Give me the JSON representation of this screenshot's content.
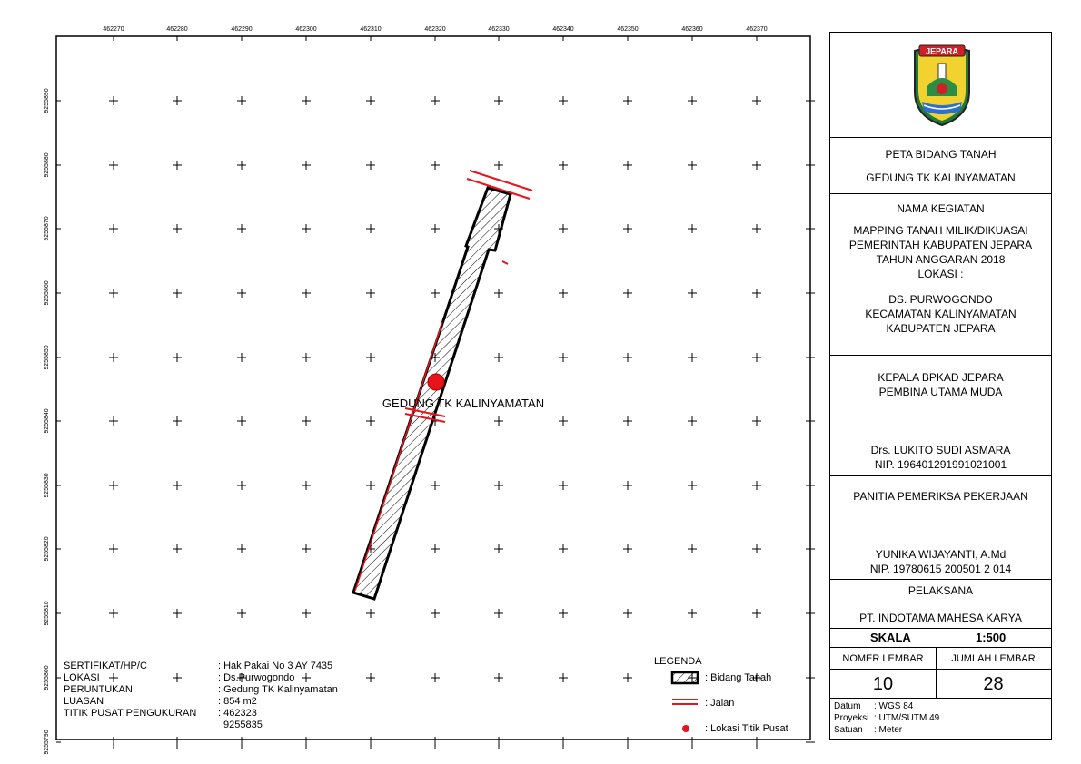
{
  "map": {
    "x_tick_labels": [
      "462270",
      "462280",
      "462290",
      "462300",
      "462310",
      "462320",
      "462330",
      "462340",
      "462350",
      "462360",
      "462370"
    ],
    "y_tick_labels": [
      "9255890",
      "9255880",
      "9255870",
      "9255860",
      "9255850",
      "9255840",
      "9255830",
      "9255820",
      "9255810",
      "9255800",
      "9255790"
    ],
    "feature_label": "GEDUNG TK KALINYAMATAN",
    "colors": {
      "road": "#e8141c",
      "point": "#e8141c",
      "parcel_outline": "#000000"
    }
  },
  "info": {
    "rows": [
      {
        "label": "SERTIFIKAT/HP/C",
        "value": ": Hak Pakai No 3 AY 7435"
      },
      {
        "label": "LOKASI",
        "value": ": Ds.Purwogondo"
      },
      {
        "label": "PERUNTUKAN",
        "value": ": Gedung TK Kalinyamatan"
      },
      {
        "label": "LUASAN",
        "value": ": 854 m2"
      },
      {
        "label": "TITIK PUSAT PENGUKURAN",
        "value": ": 462323"
      },
      {
        "label": "",
        "value": "9255835"
      }
    ]
  },
  "legend": {
    "title": "LEGENDA",
    "items": [
      {
        "icon": "hatched-box-icon",
        "label": ": Bidang Tanah"
      },
      {
        "icon": "red-double-line-icon",
        "label": ": Jalan"
      },
      {
        "icon": "red-dot-icon",
        "label": ": Lokasi Titik Pusat"
      }
    ]
  },
  "panel": {
    "logo_text": "JEPARA",
    "title_line1": "PETA BIDANG TANAH",
    "title_line2": "GEDUNG TK KALINYAMATAN",
    "activity_header": "NAMA KEGIATAN",
    "activity_lines": [
      "MAPPING TANAH MILIK/DIKUASAI",
      "PEMERINTAH KABUPATEN JEPARA",
      "TAHUN ANGGARAN 2018"
    ],
    "location_header": "LOKASI :",
    "location_lines": [
      "DS. PURWOGONDO",
      "KECAMATAN KALINYAMATAN",
      "KABUPATEN JEPARA"
    ],
    "head_title1": "KEPALA BPKAD JEPARA",
    "head_title2": "PEMBINA UTAMA MUDA",
    "head_name": "Drs. LUKITO SUDI ASMARA",
    "head_nip": "NIP. 196401291991021001",
    "committee_title": "PANITIA PEMERIKSA PEKERJAAN",
    "committee_name": "YUNIKA WIJAYANTI, A.Md",
    "committee_nip": "NIP. 19780615 200501 2 014",
    "executor_title": "PELAKSANA",
    "executor_name": "PT. INDOTAMA MAHESA KARYA",
    "scale_label": "SKALA",
    "scale_value": "1:500",
    "sheet_no_label": "NOMER LEMBAR",
    "sheet_total_label": "JUMLAH LEMBAR",
    "sheet_no": "10",
    "sheet_total": "28",
    "datum_label": "Datum",
    "datum_value": ": WGS 84",
    "proj_label": "Proyeksi",
    "proj_value": ": UTM/SUTM 49",
    "unit_label": "Satuan",
    "unit_value": ": Meter"
  }
}
